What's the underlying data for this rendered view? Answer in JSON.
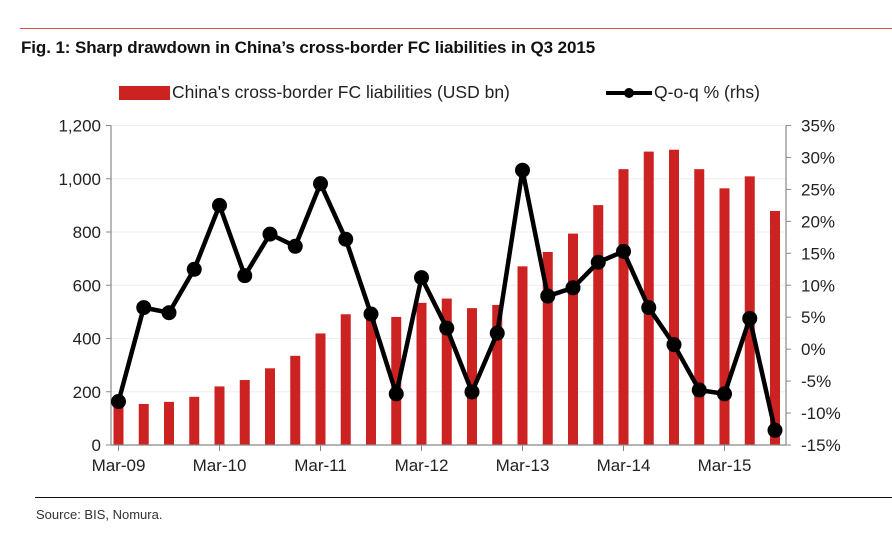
{
  "figure": {
    "title": "Fig. 1: Sharp drawdown in China’s cross-border FC liabilities in Q3 2015",
    "source": "Source: BIS, Nomura."
  },
  "colors": {
    "bar": "#cc2222",
    "line": "#000000",
    "gridline": "#eeeeee",
    "axis": "#888888",
    "top_rule": "#d9534f"
  },
  "chart_data": {
    "type": "bar+line",
    "title": "Fig. 1: Sharp drawdown in China’s cross-border FC liabilities in Q3 2015",
    "xlabel": "",
    "ylabel": "",
    "y2label": "",
    "categories": [
      "Mar-09",
      "Jun-09",
      "Sep-09",
      "Dec-09",
      "Mar-10",
      "Jun-10",
      "Sep-10",
      "Dec-10",
      "Mar-11",
      "Jun-11",
      "Sep-11",
      "Dec-11",
      "Mar-12",
      "Jun-12",
      "Sep-12",
      "Dec-12",
      "Mar-13",
      "Jun-13",
      "Sep-13",
      "Dec-13",
      "Mar-14",
      "Jun-14",
      "Sep-14",
      "Dec-14",
      "Mar-15",
      "Jun-15",
      "Sep-15"
    ],
    "x_tick_labels": [
      "Mar-09",
      "Mar-10",
      "Mar-11",
      "Mar-12",
      "Mar-13",
      "Mar-14",
      "Mar-15"
    ],
    "series": [
      {
        "name": "China's cross-border FC liabilities (USD bn)",
        "type": "bar",
        "axis": "left",
        "values": [
          160,
          154,
          162,
          181,
          220,
          244,
          288,
          335,
          419,
          491,
          488,
          481,
          534,
          550,
          514,
          526,
          671,
          725,
          794,
          901,
          1036,
          1102,
          1109,
          1036,
          964,
          1009,
          879
        ]
      },
      {
        "name": "Q-o-q % (rhs)",
        "type": "line",
        "axis": "right",
        "marker": "circle",
        "values": [
          -8.2,
          6.5,
          5.7,
          12.5,
          22.5,
          11.5,
          18.0,
          16.1,
          25.9,
          17.2,
          5.5,
          -7.0,
          11.2,
          3.3,
          -6.7,
          2.5,
          28.0,
          8.3,
          9.6,
          13.6,
          15.3,
          6.5,
          0.7,
          -6.4,
          -7.0,
          4.8,
          -12.7
        ]
      }
    ],
    "y_left": {
      "range": [
        0,
        1200
      ],
      "ticks": [
        0,
        200,
        400,
        600,
        800,
        1000,
        1200
      ],
      "tick_labels": [
        "0",
        "200",
        "400",
        "600",
        "800",
        "1,000",
        "1,200"
      ]
    },
    "y_right": {
      "range": [
        -15,
        35
      ],
      "ticks": [
        -15,
        -10,
        -5,
        0,
        5,
        10,
        15,
        20,
        25,
        30,
        35
      ],
      "tick_labels": [
        "-15%",
        "-10%",
        "-5%",
        "0%",
        "5%",
        "10%",
        "15%",
        "20%",
        "25%",
        "30%",
        "35%"
      ]
    },
    "grid": true,
    "legend": {
      "placement": "top-center",
      "entries": [
        "China's cross-border FC liabilities (USD bn)",
        "Q-o-q % (rhs)"
      ]
    }
  }
}
